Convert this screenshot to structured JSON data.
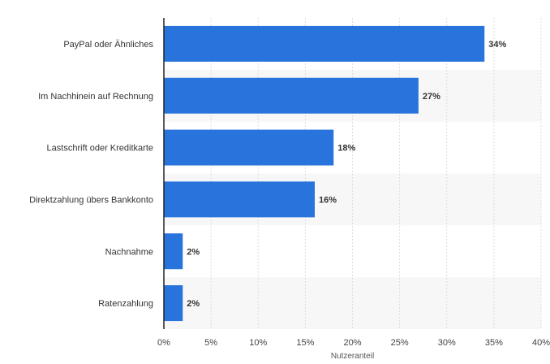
{
  "chart_data": {
    "type": "bar",
    "orientation": "horizontal",
    "categories": [
      "PayPal oder Ähnliches",
      "Im Nachhinein auf Rechnung",
      "Lastschrift oder Kreditkarte",
      "Direktzahlung übers Bankkonto",
      "Nachnahme",
      "Ratenzahlung"
    ],
    "values": [
      34,
      27,
      18,
      16,
      2,
      2
    ],
    "value_labels": [
      "34%",
      "27%",
      "18%",
      "16%",
      "2%",
      "2%"
    ],
    "xlabel": "Nutzeranteil",
    "ylabel": "",
    "xlim": [
      0,
      40
    ],
    "ticks": [
      0,
      5,
      10,
      15,
      20,
      25,
      30,
      35,
      40
    ],
    "tick_labels": [
      "0%",
      "5%",
      "10%",
      "15%",
      "20%",
      "25%",
      "30%",
      "35%",
      "40%"
    ],
    "grid": true,
    "bar_color": "#2874dc",
    "band_color": "#f7f7f7",
    "grid_color": "#dddddd"
  }
}
